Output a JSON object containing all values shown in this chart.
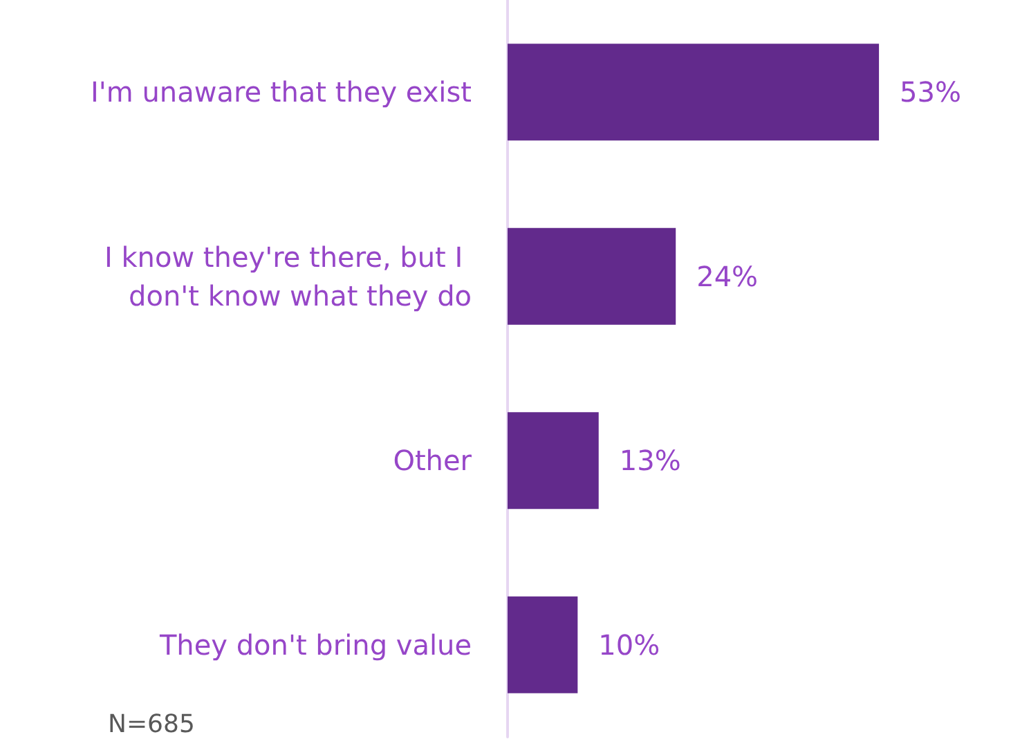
{
  "chart_data": {
    "type": "bar",
    "orientation": "horizontal",
    "categories": [
      "I'm unaware that they exist",
      "I know they're there, but I don't know what they do",
      "Other",
      "They don't bring value"
    ],
    "values": [
      53,
      24,
      13,
      10
    ],
    "color": "#622a8c",
    "value_labels": [
      "53%",
      "24%",
      "13%",
      "10%"
    ],
    "annotations": [
      "N=685"
    ]
  }
}
